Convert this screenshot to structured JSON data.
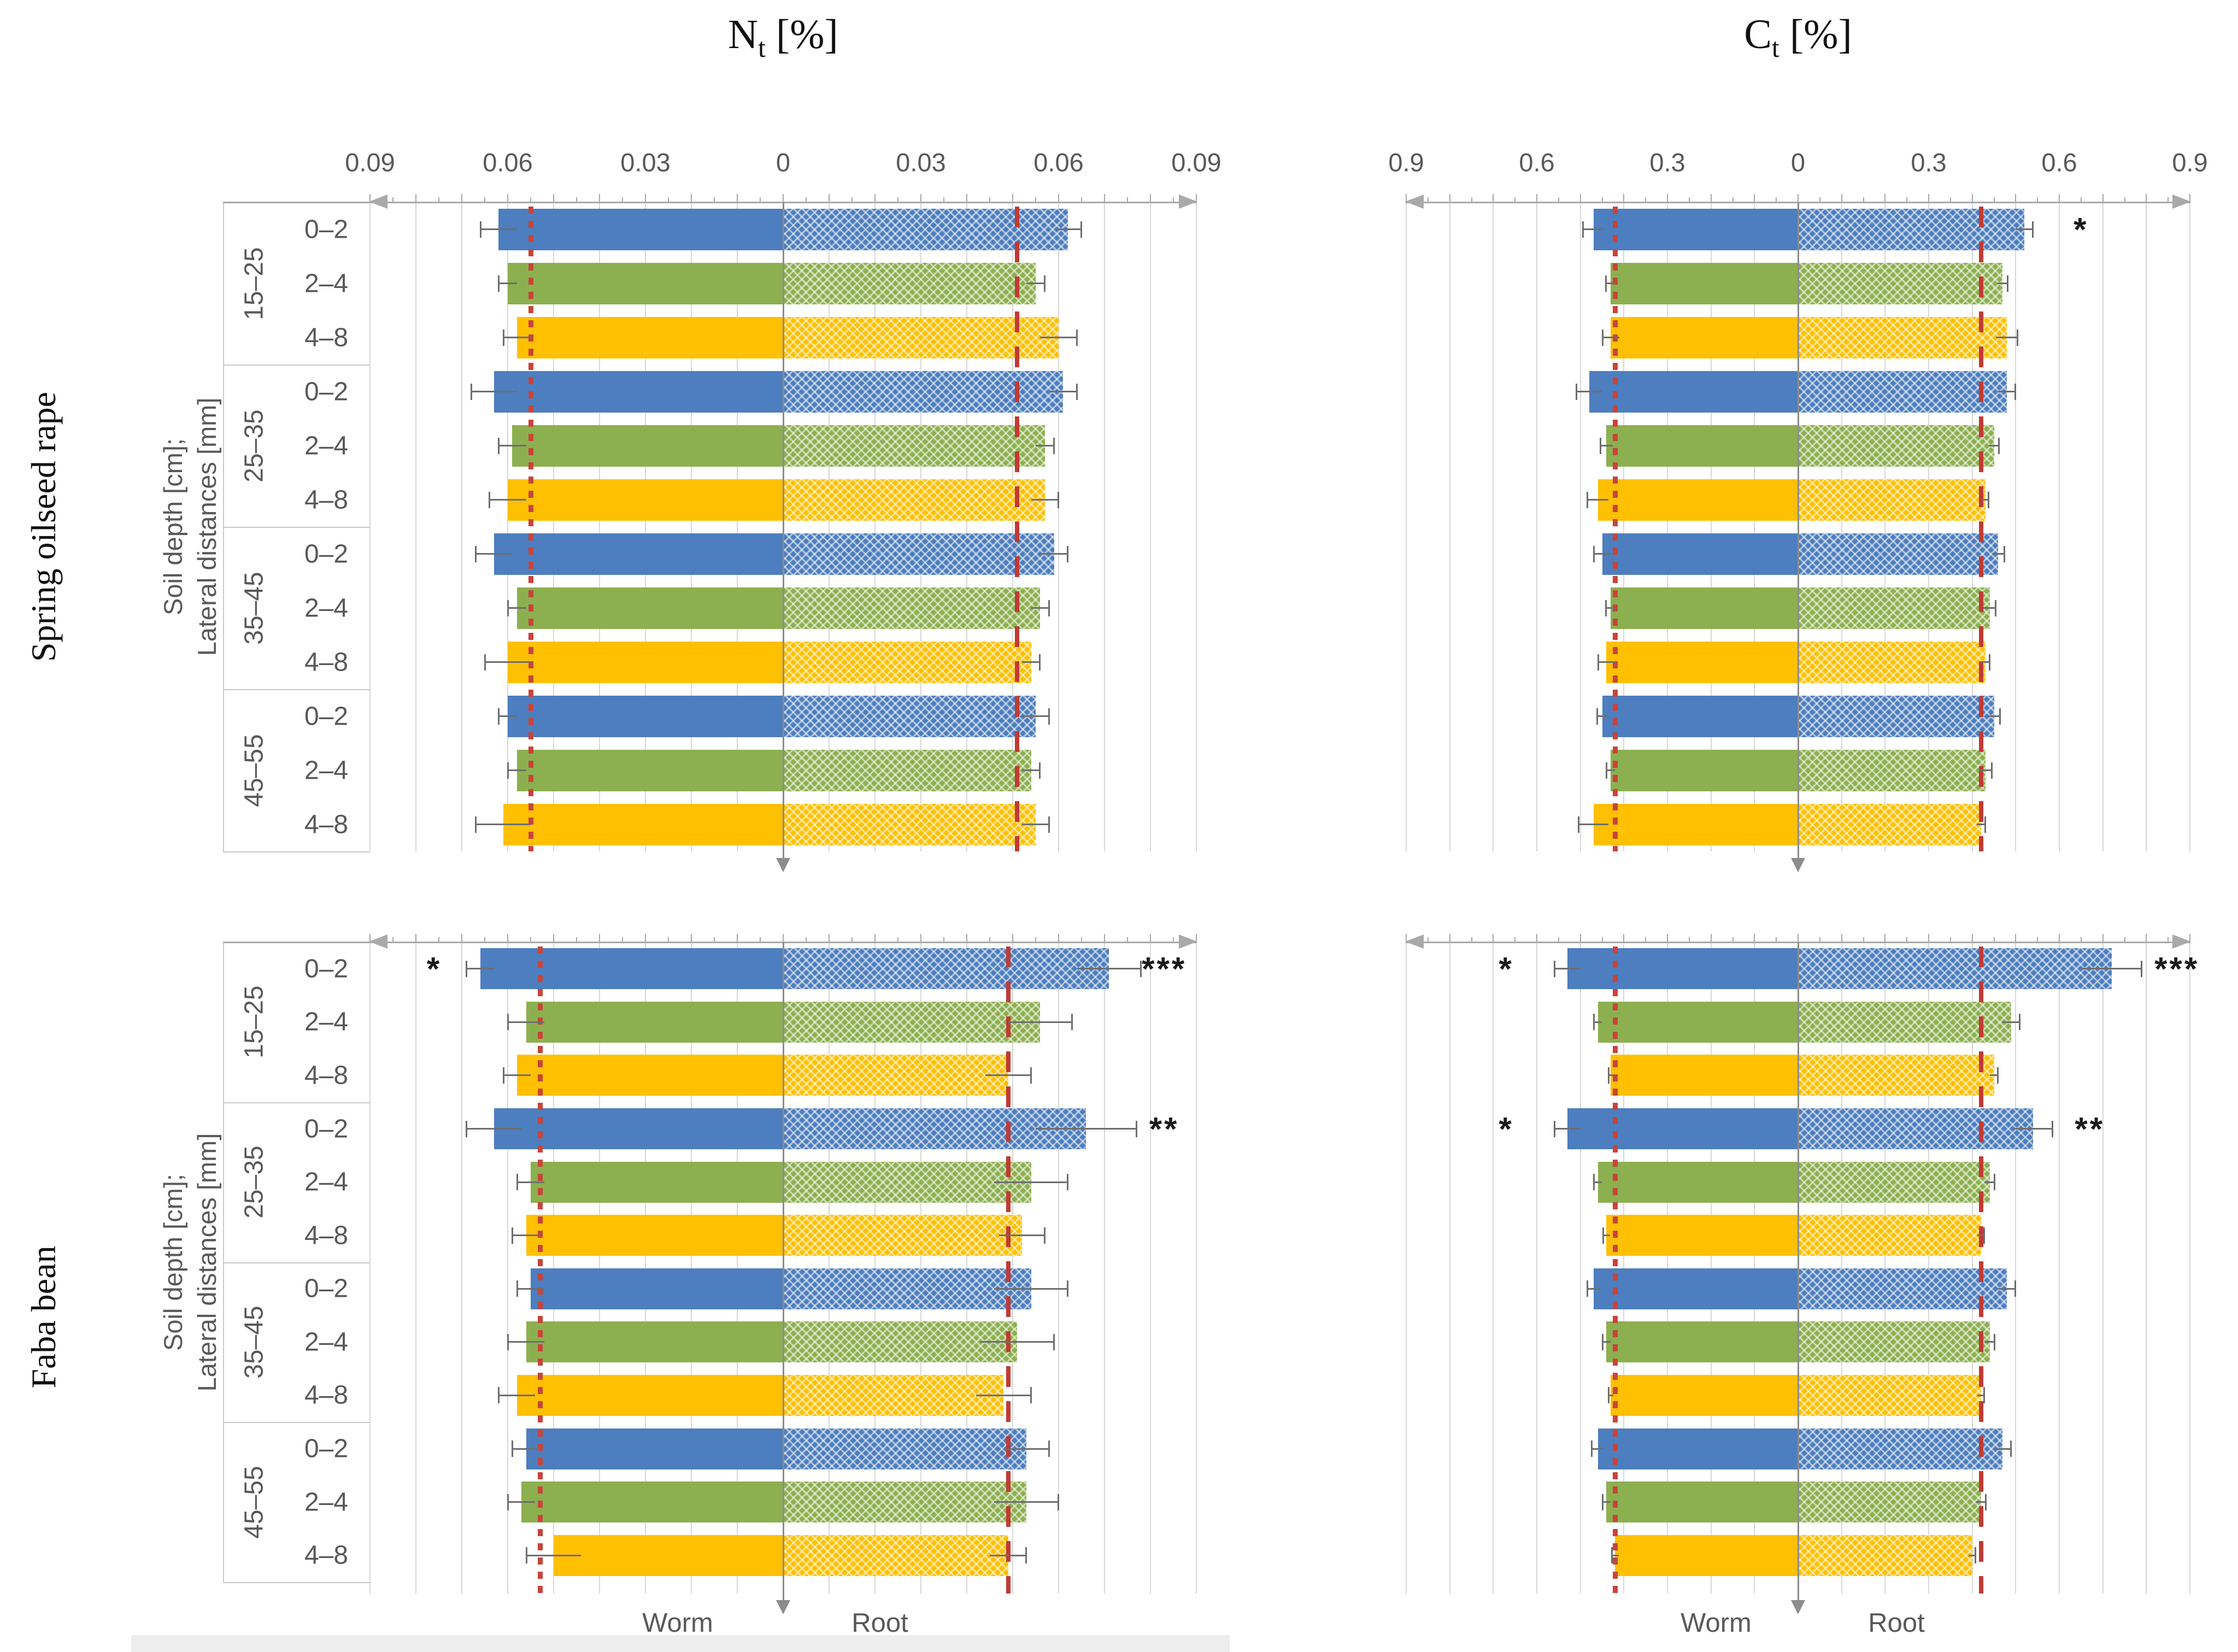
{
  "figure": {
    "columns": [
      {
        "title_main": "N",
        "title_sub": "t",
        "title_unit": " [%]"
      },
      {
        "title_main": "C",
        "title_sub": "t",
        "title_unit": " [%]"
      }
    ],
    "rows": [
      {
        "crop": "Spring oilseed rape"
      },
      {
        "crop": "Faba bean"
      }
    ],
    "y_axis_label": [
      "Soil depth [cm];",
      "Lateral distances [mm]"
    ],
    "depth_groups": [
      "15–25",
      "25–35",
      "35–45",
      "45–55"
    ],
    "lateral_distances": [
      "0–2",
      "2–4",
      "4–8"
    ],
    "legend": {
      "worm": "Worm",
      "root": "Root"
    },
    "colors": {
      "blue": "#4d7ebf",
      "green": "#8cb04f",
      "yellow": "#ffc002",
      "ref_dotted": "#c8443a",
      "ref_dashed": "#c23a33",
      "grid": "#d8d8d8",
      "axis": "#a9a9a9",
      "error": "#6e6e6e",
      "text_gray": "#595959",
      "text_black": "#1a1a1a"
    }
  },
  "chart_data": [
    {
      "id": "spring-oilseed-rape-nt",
      "type": "bar",
      "orientation": "diverging-horizontal",
      "crop": "Spring oilseed rape",
      "measure": "Nt [%]",
      "axis_max": 0.09,
      "minor_step": 0.01,
      "tick_labels": [
        "0.09",
        "0.06",
        "0.03",
        "0",
        "0.03",
        "0.06",
        "0.09"
      ],
      "show_tick_labels": true,
      "series_left": "Worm",
      "series_right": "Root",
      "ref_worm_dotted": 0.055,
      "ref_root_dashed": 0.051,
      "rows": [
        {
          "depth": "15–25",
          "dist": "0–2",
          "color": "blue",
          "worm": 0.062,
          "worm_err": 0.004,
          "root": 0.062,
          "root_err": 0.003,
          "sig_worm": null,
          "sig_root": null
        },
        {
          "depth": "15–25",
          "dist": "2–4",
          "color": "green",
          "worm": 0.06,
          "worm_err": 0.002,
          "root": 0.055,
          "root_err": 0.002,
          "sig_worm": null,
          "sig_root": null
        },
        {
          "depth": "15–25",
          "dist": "4–8",
          "color": "yellow",
          "worm": 0.058,
          "worm_err": 0.003,
          "root": 0.06,
          "root_err": 0.004,
          "sig_worm": null,
          "sig_root": null
        },
        {
          "depth": "25–35",
          "dist": "0–2",
          "color": "blue",
          "worm": 0.063,
          "worm_err": 0.005,
          "root": 0.061,
          "root_err": 0.003,
          "sig_worm": null,
          "sig_root": null
        },
        {
          "depth": "25–35",
          "dist": "2–4",
          "color": "green",
          "worm": 0.059,
          "worm_err": 0.003,
          "root": 0.057,
          "root_err": 0.002,
          "sig_worm": null,
          "sig_root": null
        },
        {
          "depth": "25–35",
          "dist": "4–8",
          "color": "yellow",
          "worm": 0.06,
          "worm_err": 0.004,
          "root": 0.057,
          "root_err": 0.003,
          "sig_worm": null,
          "sig_root": null
        },
        {
          "depth": "35–45",
          "dist": "0–2",
          "color": "blue",
          "worm": 0.063,
          "worm_err": 0.004,
          "root": 0.059,
          "root_err": 0.003,
          "sig_worm": null,
          "sig_root": null
        },
        {
          "depth": "35–45",
          "dist": "2–4",
          "color": "green",
          "worm": 0.058,
          "worm_err": 0.002,
          "root": 0.056,
          "root_err": 0.002,
          "sig_worm": null,
          "sig_root": null
        },
        {
          "depth": "35–45",
          "dist": "4–8",
          "color": "yellow",
          "worm": 0.06,
          "worm_err": 0.005,
          "root": 0.054,
          "root_err": 0.002,
          "sig_worm": null,
          "sig_root": null
        },
        {
          "depth": "45–55",
          "dist": "0–2",
          "color": "blue",
          "worm": 0.06,
          "worm_err": 0.002,
          "root": 0.055,
          "root_err": 0.003,
          "sig_worm": null,
          "sig_root": null
        },
        {
          "depth": "45–55",
          "dist": "2–4",
          "color": "green",
          "worm": 0.058,
          "worm_err": 0.002,
          "root": 0.054,
          "root_err": 0.002,
          "sig_worm": null,
          "sig_root": null
        },
        {
          "depth": "45–55",
          "dist": "4–8",
          "color": "yellow",
          "worm": 0.061,
          "worm_err": 0.006,
          "root": 0.055,
          "root_err": 0.003,
          "sig_worm": null,
          "sig_root": null
        }
      ]
    },
    {
      "id": "spring-oilseed-rape-ct",
      "type": "bar",
      "orientation": "diverging-horizontal",
      "crop": "Spring oilseed rape",
      "measure": "Ct [%]",
      "axis_max": 0.9,
      "minor_step": 0.1,
      "tick_labels": [
        "0.9",
        "0.6",
        "0.3",
        "0",
        "0.3",
        "0.6",
        "0.9"
      ],
      "show_tick_labels": true,
      "series_left": "Worm",
      "series_right": "Root",
      "ref_worm_dotted": 0.42,
      "ref_root_dashed": 0.42,
      "rows": [
        {
          "depth": "15–25",
          "dist": "0–2",
          "color": "blue",
          "worm": 0.47,
          "worm_err": 0.025,
          "root": 0.52,
          "root_err": 0.02,
          "sig_worm": null,
          "sig_root": {
            "text": "*",
            "at": 0.65
          }
        },
        {
          "depth": "15–25",
          "dist": "2–4",
          "color": "green",
          "worm": 0.43,
          "worm_err": 0.012,
          "root": 0.47,
          "root_err": 0.012,
          "sig_worm": null,
          "sig_root": null
        },
        {
          "depth": "15–25",
          "dist": "4–8",
          "color": "yellow",
          "worm": 0.43,
          "worm_err": 0.02,
          "root": 0.48,
          "root_err": 0.025,
          "sig_worm": null,
          "sig_root": null
        },
        {
          "depth": "25–35",
          "dist": "0–2",
          "color": "blue",
          "worm": 0.48,
          "worm_err": 0.03,
          "root": 0.48,
          "root_err": 0.02,
          "sig_worm": null,
          "sig_root": null
        },
        {
          "depth": "25–35",
          "dist": "2–4",
          "color": "green",
          "worm": 0.44,
          "worm_err": 0.015,
          "root": 0.45,
          "root_err": 0.012,
          "sig_worm": null,
          "sig_root": null
        },
        {
          "depth": "25–35",
          "dist": "4–8",
          "color": "yellow",
          "worm": 0.46,
          "worm_err": 0.025,
          "root": 0.43,
          "root_err": 0.008,
          "sig_worm": null,
          "sig_root": null
        },
        {
          "depth": "35–45",
          "dist": "0–2",
          "color": "blue",
          "worm": 0.45,
          "worm_err": 0.02,
          "root": 0.46,
          "root_err": 0.015,
          "sig_worm": null,
          "sig_root": null
        },
        {
          "depth": "35–45",
          "dist": "2–4",
          "color": "green",
          "worm": 0.43,
          "worm_err": 0.012,
          "root": 0.44,
          "root_err": 0.015,
          "sig_worm": null,
          "sig_root": null
        },
        {
          "depth": "35–45",
          "dist": "4–8",
          "color": "yellow",
          "worm": 0.44,
          "worm_err": 0.02,
          "root": 0.43,
          "root_err": 0.01,
          "sig_worm": null,
          "sig_root": null
        },
        {
          "depth": "45–55",
          "dist": "0–2",
          "color": "blue",
          "worm": 0.45,
          "worm_err": 0.012,
          "root": 0.45,
          "root_err": 0.015,
          "sig_worm": null,
          "sig_root": null
        },
        {
          "depth": "45–55",
          "dist": "2–4",
          "color": "green",
          "worm": 0.43,
          "worm_err": 0.01,
          "root": 0.43,
          "root_err": 0.015,
          "sig_worm": null,
          "sig_root": null
        },
        {
          "depth": "45–55",
          "dist": "4–8",
          "color": "yellow",
          "worm": 0.47,
          "worm_err": 0.035,
          "root": 0.42,
          "root_err": 0.01,
          "sig_worm": null,
          "sig_root": null
        }
      ]
    },
    {
      "id": "faba-bean-nt",
      "type": "bar",
      "orientation": "diverging-horizontal",
      "crop": "Faba bean",
      "measure": "Nt [%]",
      "axis_max": 0.09,
      "minor_step": 0.01,
      "tick_labels": [
        "0.09",
        "0.06",
        "0.03",
        "0",
        "0.03",
        "0.06",
        "0.09"
      ],
      "show_tick_labels": false,
      "series_left": "Worm",
      "series_right": "Root",
      "ref_worm_dotted": 0.053,
      "ref_root_dashed": 0.049,
      "rows": [
        {
          "depth": "15–25",
          "dist": "0–2",
          "color": "blue",
          "worm": 0.066,
          "worm_err": 0.003,
          "root": 0.071,
          "root_err": 0.007,
          "sig_worm": {
            "text": "*",
            "at": 0.076
          },
          "sig_root": {
            "text": "***",
            "at": 0.083
          }
        },
        {
          "depth": "15–25",
          "dist": "2–4",
          "color": "green",
          "worm": 0.056,
          "worm_err": 0.004,
          "root": 0.056,
          "root_err": 0.007,
          "sig_worm": null,
          "sig_root": null
        },
        {
          "depth": "15–25",
          "dist": "4–8",
          "color": "yellow",
          "worm": 0.058,
          "worm_err": 0.003,
          "root": 0.049,
          "root_err": 0.005,
          "sig_worm": null,
          "sig_root": null
        },
        {
          "depth": "25–35",
          "dist": "0–2",
          "color": "blue",
          "worm": 0.063,
          "worm_err": 0.006,
          "root": 0.066,
          "root_err": 0.011,
          "sig_worm": null,
          "sig_root": {
            "text": "**",
            "at": 0.083
          }
        },
        {
          "depth": "25–35",
          "dist": "2–4",
          "color": "green",
          "worm": 0.055,
          "worm_err": 0.003,
          "root": 0.054,
          "root_err": 0.008,
          "sig_worm": null,
          "sig_root": null
        },
        {
          "depth": "25–35",
          "dist": "4–8",
          "color": "yellow",
          "worm": 0.056,
          "worm_err": 0.003,
          "root": 0.052,
          "root_err": 0.005,
          "sig_worm": null,
          "sig_root": null
        },
        {
          "depth": "35–45",
          "dist": "0–2",
          "color": "blue",
          "worm": 0.055,
          "worm_err": 0.003,
          "root": 0.054,
          "root_err": 0.008,
          "sig_worm": null,
          "sig_root": null
        },
        {
          "depth": "35–45",
          "dist": "2–4",
          "color": "green",
          "worm": 0.056,
          "worm_err": 0.004,
          "root": 0.051,
          "root_err": 0.008,
          "sig_worm": null,
          "sig_root": null
        },
        {
          "depth": "35–45",
          "dist": "4–8",
          "color": "yellow",
          "worm": 0.058,
          "worm_err": 0.004,
          "root": 0.048,
          "root_err": 0.006,
          "sig_worm": null,
          "sig_root": null
        },
        {
          "depth": "45–55",
          "dist": "0–2",
          "color": "blue",
          "worm": 0.056,
          "worm_err": 0.003,
          "root": 0.053,
          "root_err": 0.005,
          "sig_worm": null,
          "sig_root": null
        },
        {
          "depth": "45–55",
          "dist": "2–4",
          "color": "green",
          "worm": 0.057,
          "worm_err": 0.003,
          "root": 0.053,
          "root_err": 0.007,
          "sig_worm": null,
          "sig_root": null
        },
        {
          "depth": "45–55",
          "dist": "4–8",
          "color": "yellow",
          "worm": 0.05,
          "worm_err": 0.006,
          "root": 0.049,
          "root_err": 0.004,
          "sig_worm": null,
          "sig_root": null
        }
      ]
    },
    {
      "id": "faba-bean-ct",
      "type": "bar",
      "orientation": "diverging-horizontal",
      "crop": "Faba bean",
      "measure": "Ct [%]",
      "axis_max": 0.9,
      "minor_step": 0.1,
      "tick_labels": [
        "0.9",
        "0.6",
        "0.3",
        "0",
        "0.3",
        "0.6",
        "0.9"
      ],
      "show_tick_labels": false,
      "series_left": "Worm",
      "series_right": "Root",
      "ref_worm_dotted": 0.42,
      "ref_root_dashed": 0.42,
      "rows": [
        {
          "depth": "15–25",
          "dist": "0–2",
          "color": "blue",
          "worm": 0.53,
          "worm_err": 0.03,
          "root": 0.72,
          "root_err": 0.07,
          "sig_worm": {
            "text": "*",
            "at": 0.67
          },
          "sig_root": {
            "text": "***",
            "at": 0.87
          }
        },
        {
          "depth": "15–25",
          "dist": "2–4",
          "color": "green",
          "worm": 0.46,
          "worm_err": 0.01,
          "root": 0.49,
          "root_err": 0.02,
          "sig_worm": null,
          "sig_root": null
        },
        {
          "depth": "15–25",
          "dist": "4–8",
          "color": "yellow",
          "worm": 0.43,
          "worm_err": 0.006,
          "root": 0.45,
          "root_err": 0.01,
          "sig_worm": null,
          "sig_root": null
        },
        {
          "depth": "25–35",
          "dist": "0–2",
          "color": "blue",
          "worm": 0.53,
          "worm_err": 0.03,
          "root": 0.54,
          "root_err": 0.045,
          "sig_worm": {
            "text": "*",
            "at": 0.67
          },
          "sig_root": {
            "text": "**",
            "at": 0.67
          }
        },
        {
          "depth": "25–35",
          "dist": "2–4",
          "color": "green",
          "worm": 0.46,
          "worm_err": 0.01,
          "root": 0.44,
          "root_err": 0.012,
          "sig_worm": null,
          "sig_root": null
        },
        {
          "depth": "25–35",
          "dist": "4–8",
          "color": "yellow",
          "worm": 0.44,
          "worm_err": 0.008,
          "root": 0.42,
          "root_err": 0.008,
          "sig_worm": null,
          "sig_root": null
        },
        {
          "depth": "35–45",
          "dist": "0–2",
          "color": "blue",
          "worm": 0.47,
          "worm_err": 0.015,
          "root": 0.48,
          "root_err": 0.02,
          "sig_worm": null,
          "sig_root": null
        },
        {
          "depth": "35–45",
          "dist": "2–4",
          "color": "green",
          "worm": 0.44,
          "worm_err": 0.01,
          "root": 0.44,
          "root_err": 0.012,
          "sig_worm": null,
          "sig_root": null
        },
        {
          "depth": "35–45",
          "dist": "4–8",
          "color": "yellow",
          "worm": 0.43,
          "worm_err": 0.006,
          "root": 0.42,
          "root_err": 0.008,
          "sig_worm": null,
          "sig_root": null
        },
        {
          "depth": "45–55",
          "dist": "0–2",
          "color": "blue",
          "worm": 0.46,
          "worm_err": 0.015,
          "root": 0.47,
          "root_err": 0.02,
          "sig_worm": null,
          "sig_root": null
        },
        {
          "depth": "45–55",
          "dist": "2–4",
          "color": "green",
          "worm": 0.44,
          "worm_err": 0.01,
          "root": 0.42,
          "root_err": 0.012,
          "sig_worm": null,
          "sig_root": null
        },
        {
          "depth": "45–55",
          "dist": "4–8",
          "color": "yellow",
          "worm": 0.42,
          "worm_err": 0.008,
          "root": 0.4,
          "root_err": 0.008,
          "sig_worm": null,
          "sig_root": null
        }
      ]
    }
  ]
}
